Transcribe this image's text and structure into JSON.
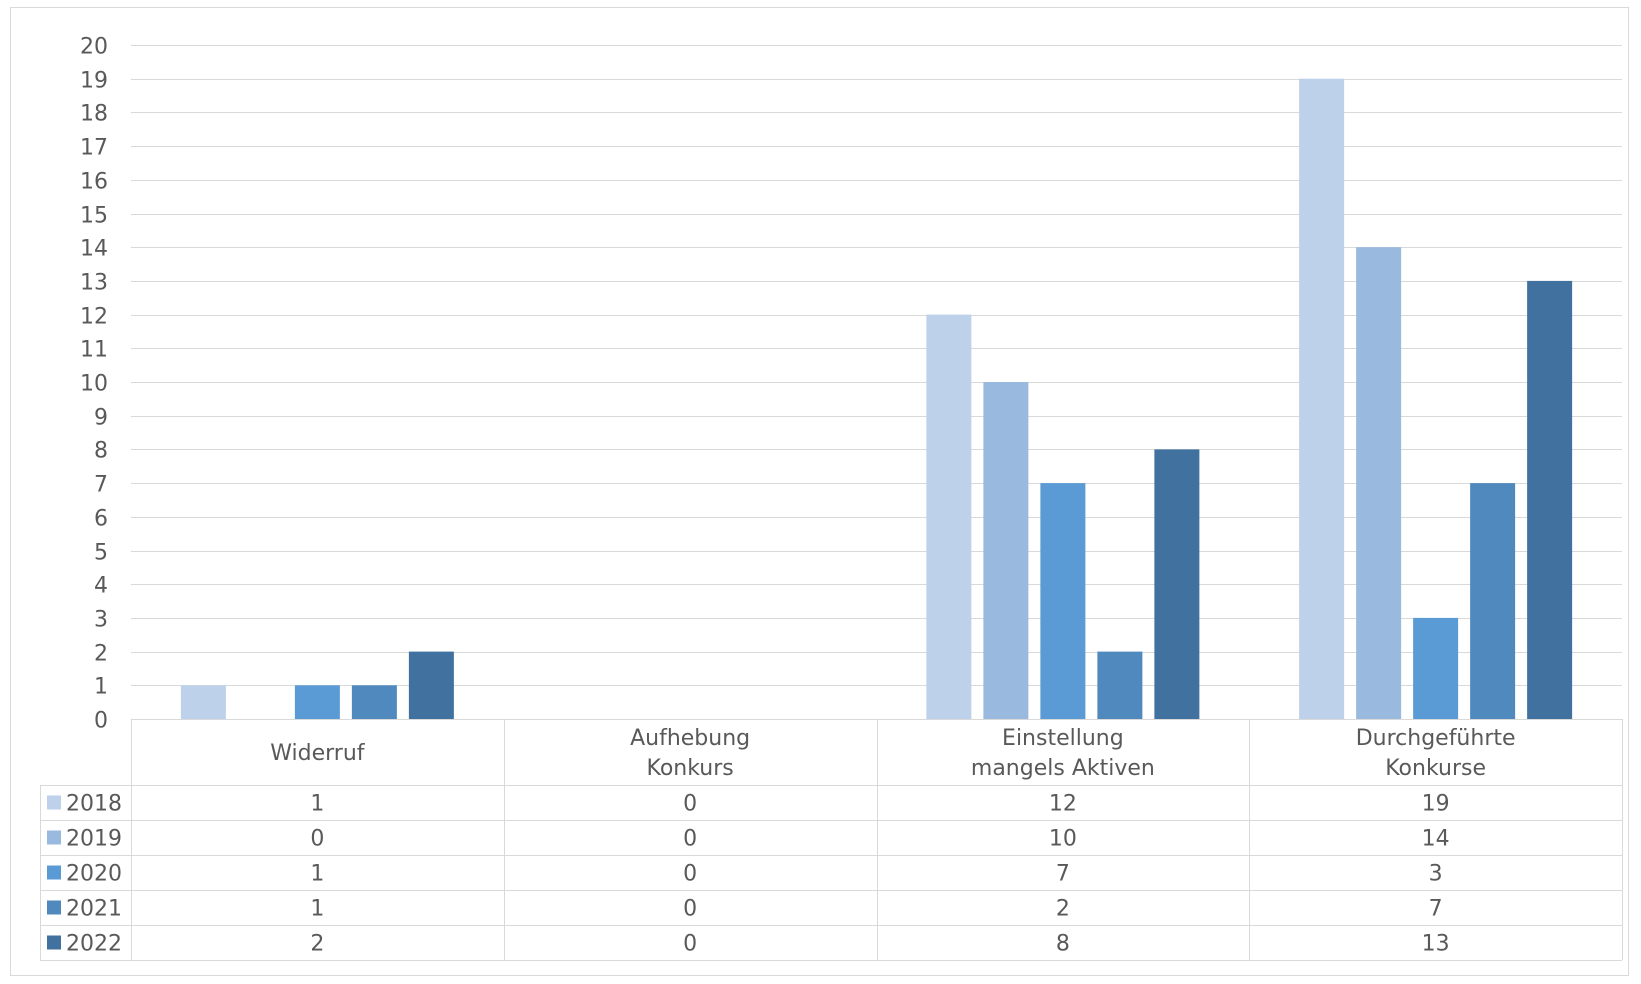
{
  "chart_data": {
    "type": "bar",
    "categories": [
      [
        "Widerruf"
      ],
      [
        "Aufhebung",
        "Konkurs"
      ],
      [
        "Einstellung",
        "mangels Aktiven"
      ],
      [
        "Durchgeführte",
        "Konkurse"
      ]
    ],
    "series": [
      {
        "name": "2018",
        "color": "#bdd1ea",
        "values": [
          1,
          0,
          12,
          19
        ]
      },
      {
        "name": "2019",
        "color": "#9ab9df",
        "values": [
          0,
          0,
          10,
          14
        ]
      },
      {
        "name": "2020",
        "color": "#5b9bd5",
        "values": [
          1,
          0,
          7,
          3
        ]
      },
      {
        "name": "2021",
        "color": "#4f89bd",
        "values": [
          1,
          0,
          2,
          7
        ]
      },
      {
        "name": "2022",
        "color": "#41729f",
        "values": [
          2,
          0,
          8,
          13
        ]
      }
    ],
    "ylim": [
      0,
      20
    ],
    "ytick_step": 1,
    "grid": true,
    "legend_placement": "data-table-left",
    "data_table": true
  }
}
